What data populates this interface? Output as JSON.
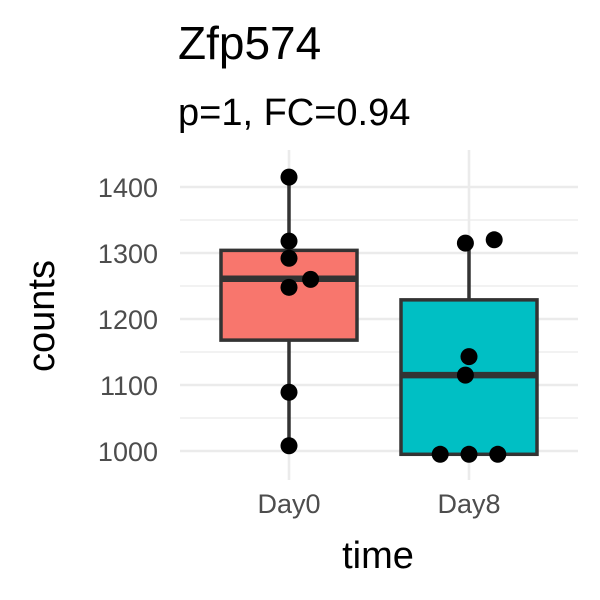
{
  "chart_data": {
    "type": "boxplot",
    "title": "Zfp574",
    "subtitle": "p=1, FC=0.94",
    "xlabel": "time",
    "ylabel": "counts",
    "ylim": [
      970,
      1445
    ],
    "yticks": [
      1000,
      1100,
      1200,
      1300,
      1400
    ],
    "categories": [
      "Day0",
      "Day8"
    ],
    "grid": true,
    "boxes": [
      {
        "category": "Day0",
        "color": "#F8766D",
        "min": 1008,
        "q1": 1168,
        "median": 1261,
        "q3": 1304,
        "max": 1415
      },
      {
        "category": "Day8",
        "color": "#00BFC4",
        "min": 995,
        "q1": 995,
        "median": 1115,
        "q3": 1229,
        "max": 1320
      }
    ],
    "points": [
      {
        "category": "Day0",
        "values": [
          1415,
          1318,
          1292,
          1260,
          1248,
          1089,
          1008
        ],
        "jitter": [
          0,
          0,
          0,
          0.12,
          0,
          0,
          0
        ]
      },
      {
        "category": "Day8",
        "values": [
          1320,
          1315,
          1143,
          1115,
          995,
          995,
          995
        ],
        "jitter": [
          0.14,
          -0.02,
          0,
          -0.02,
          -0.16,
          0,
          0.16
        ]
      }
    ]
  }
}
